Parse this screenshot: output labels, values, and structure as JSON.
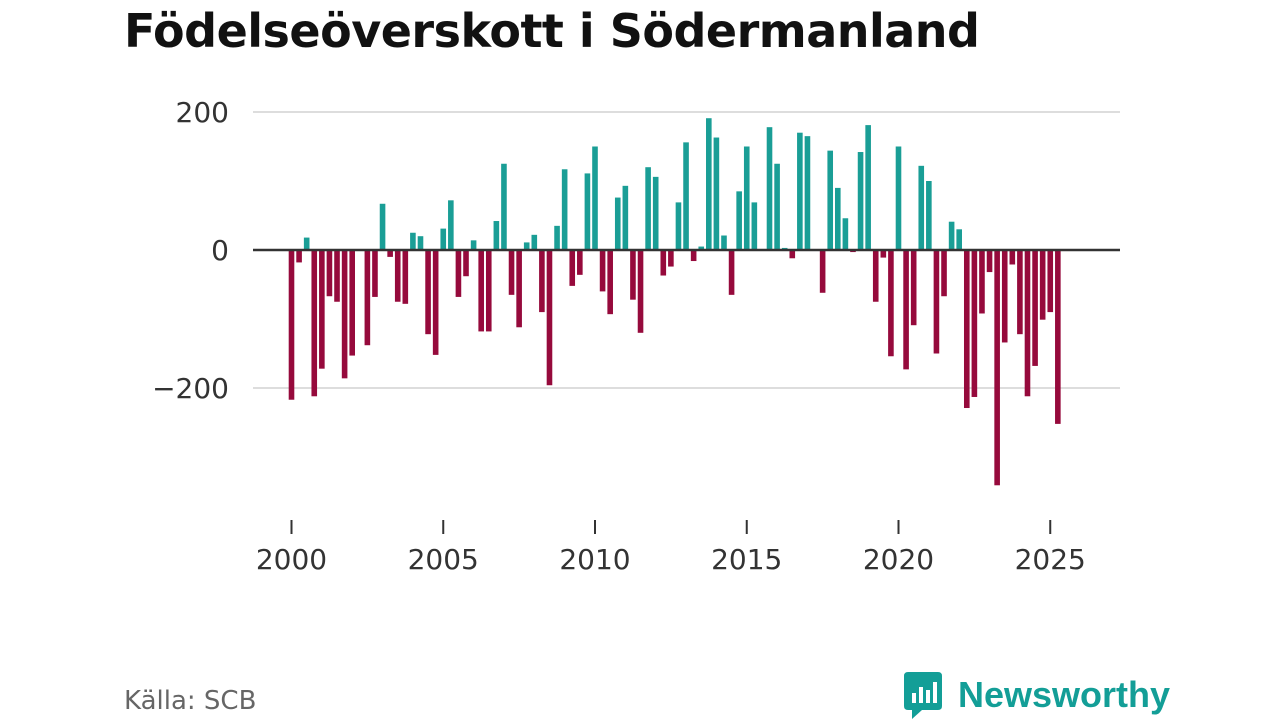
{
  "page": {
    "title": "Födelseöverskott i Södermanland",
    "source": "Källa: SCB",
    "brand": "Newsworthy"
  },
  "colors": {
    "positive": "#1a9e96",
    "negative": "#960a3c",
    "brand": "#139e97"
  },
  "chart_data": {
    "type": "bar",
    "title": "Födelseöverskott i Södermanland",
    "xlabel": "",
    "ylabel": "",
    "ylim": [
      -370,
      215
    ],
    "xlim": [
      1998.4,
      2027.05
    ],
    "y_ticks": [
      200,
      0,
      -200
    ],
    "y_tick_labels": [
      "200",
      "0",
      "−200"
    ],
    "x_ticks": [
      2000,
      2005,
      2010,
      2015,
      2020,
      2025
    ],
    "x_tick_labels": [
      "2000",
      "2005",
      "2010",
      "2015",
      "2020",
      "2025"
    ],
    "frequency": "quarterly",
    "start": "2000-Q1",
    "values": [
      -217,
      -18,
      18,
      -212,
      -172,
      -67,
      -75,
      -186,
      -153,
      0,
      -138,
      -68,
      67,
      -10,
      -75,
      -78,
      25,
      20,
      -122,
      -152,
      31,
      72,
      -68,
      -38,
      14,
      -118,
      -118,
      42,
      125,
      -65,
      -112,
      11,
      22,
      -90,
      -196,
      35,
      117,
      -52,
      -36,
      111,
      150,
      -60,
      -93,
      76,
      93,
      -72,
      -120,
      120,
      106,
      -37,
      -24,
      69,
      156,
      -16,
      5,
      191,
      163,
      21,
      -65,
      85,
      150,
      69,
      0,
      178,
      125,
      3,
      -12,
      170,
      165,
      0,
      -62,
      144,
      90,
      46,
      -3,
      142,
      181,
      -75,
      -11,
      -154,
      150,
      -173,
      -109,
      122,
      100,
      -150,
      -67,
      41,
      30,
      -229,
      -213,
      -92,
      -32,
      -341,
      -134,
      -21,
      -122,
      -212,
      -168,
      -101,
      -90,
      -252
    ]
  }
}
